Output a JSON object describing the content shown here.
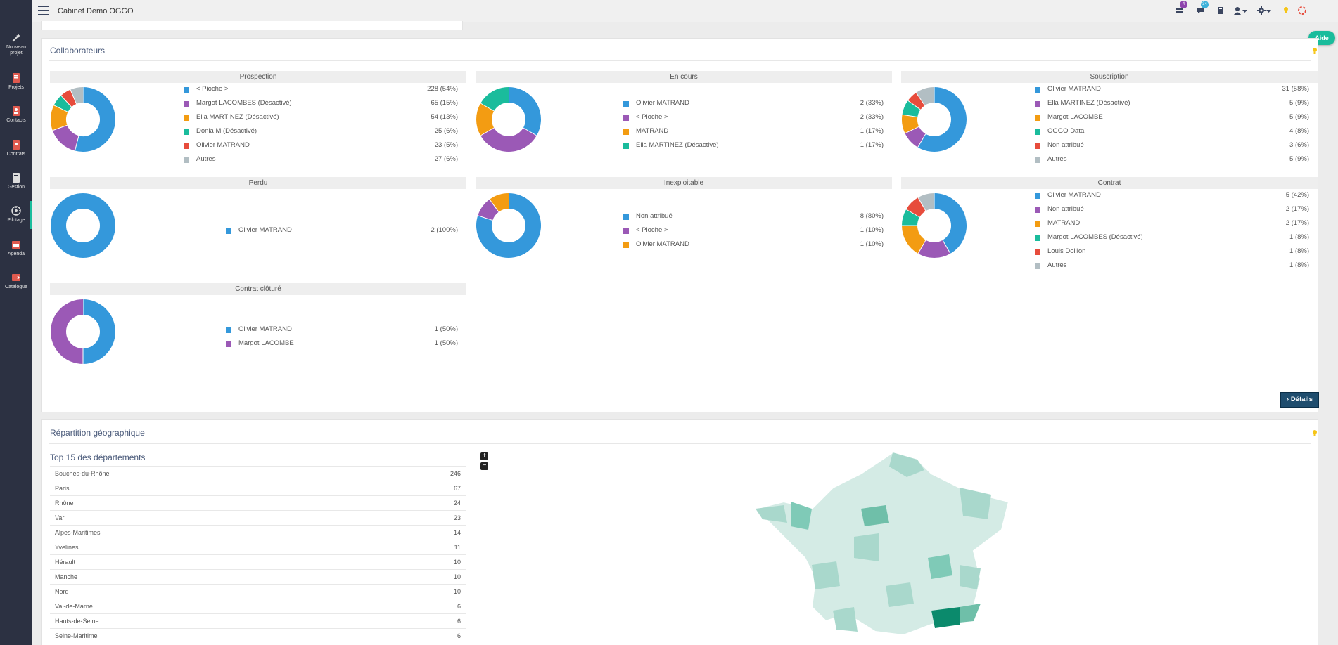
{
  "app": {
    "title": "Cabinet Demo OGGO"
  },
  "sidebar": {
    "items": [
      {
        "label": "Nouveau",
        "label2": "projet",
        "icon": "magic-wand-icon",
        "color": "#dddddd"
      },
      {
        "label": "Projets",
        "label2": "",
        "icon": "projects-icon",
        "color": "#e05a4f"
      },
      {
        "label": "Contacts",
        "label2": "",
        "icon": "contacts-icon",
        "color": "#e05a4f"
      },
      {
        "label": "Contrats",
        "label2": "",
        "icon": "contracts-icon",
        "color": "#e05a4f"
      },
      {
        "label": "Gestion",
        "label2": "",
        "icon": "management-icon",
        "color": "#dddddd"
      },
      {
        "label": "Pilotage",
        "label2": "",
        "icon": "dashboard-gauge-icon",
        "color": "#dddddd"
      },
      {
        "label": "Agenda",
        "label2": "",
        "icon": "calendar-icon",
        "color": "#e05a4f"
      },
      {
        "label": "Catalogue",
        "label2": "",
        "icon": "catalog-icon",
        "color": "#e05a4f"
      }
    ]
  },
  "topbar": {
    "notifications_count": "4",
    "messages_count": "34"
  },
  "aide_label": "Aide",
  "collab": {
    "title": "Collaborateurs",
    "details_label": "› Détails"
  },
  "colors": [
    "#3498db",
    "#9b59b6",
    "#f39c12",
    "#1abc9c",
    "#e74c3c",
    "#b2bec3"
  ],
  "charts": [
    {
      "title": "Prospection",
      "entries": [
        {
          "label": "< Pioche >",
          "value": 228,
          "text": "228 (54%)"
        },
        {
          "label": "Margot LACOMBES (Désactivé)",
          "value": 65,
          "text": "65 (15%)"
        },
        {
          "label": "Ella MARTINEZ (Désactivé)",
          "value": 54,
          "text": "54 (13%)"
        },
        {
          "label": "Donia M (Désactivé)",
          "value": 25,
          "text": "25 (6%)"
        },
        {
          "label": "Olivier MATRAND",
          "value": 23,
          "text": "23 (5%)"
        },
        {
          "label": "Autres",
          "value": 27,
          "text": "27 (6%)"
        }
      ]
    },
    {
      "title": "En cours",
      "entries": [
        {
          "label": "Olivier MATRAND",
          "value": 2,
          "text": "2 (33%)"
        },
        {
          "label": "< Pioche >",
          "value": 2,
          "text": "2 (33%)"
        },
        {
          "label": "MATRAND",
          "value": 1,
          "text": "1 (17%)"
        },
        {
          "label": "Ella MARTINEZ (Désactivé)",
          "value": 1,
          "text": "1 (17%)"
        }
      ]
    },
    {
      "title": "Souscription",
      "entries": [
        {
          "label": "Olivier MATRAND",
          "value": 31,
          "text": "31 (58%)"
        },
        {
          "label": "Ella MARTINEZ (Désactivé)",
          "value": 5,
          "text": "5 (9%)"
        },
        {
          "label": "Margot LACOMBE",
          "value": 5,
          "text": "5 (9%)"
        },
        {
          "label": "OGGO Data",
          "value": 4,
          "text": "4 (8%)"
        },
        {
          "label": "Non attribué",
          "value": 3,
          "text": "3 (6%)"
        },
        {
          "label": "Autres",
          "value": 5,
          "text": "5 (9%)"
        }
      ]
    },
    {
      "title": "Perdu",
      "entries": [
        {
          "label": "Olivier MATRAND",
          "value": 2,
          "text": "2 (100%)"
        }
      ]
    },
    {
      "title": "Inexploitable",
      "entries": [
        {
          "label": "Non attribué",
          "value": 8,
          "text": "8 (80%)"
        },
        {
          "label": "< Pioche >",
          "value": 1,
          "text": "1 (10%)"
        },
        {
          "label": "Olivier MATRAND",
          "value": 1,
          "text": "1 (10%)"
        }
      ]
    },
    {
      "title": "Contrat",
      "entries": [
        {
          "label": "Olivier MATRAND",
          "value": 5,
          "text": "5 (42%)"
        },
        {
          "label": "Non attribué",
          "value": 2,
          "text": "2 (17%)"
        },
        {
          "label": "MATRAND",
          "value": 2,
          "text": "2 (17%)"
        },
        {
          "label": "Margot LACOMBES (Désactivé)",
          "value": 1,
          "text": "1 (8%)"
        },
        {
          "label": "Louis Doillon",
          "value": 1,
          "text": "1 (8%)"
        },
        {
          "label": "Autres",
          "value": 1,
          "text": "1 (8%)"
        }
      ]
    },
    {
      "title": "Contrat clôturé",
      "entries": [
        {
          "label": "Olivier MATRAND",
          "value": 1,
          "text": "1 (50%)"
        },
        {
          "label": "Margot LACOMBE",
          "value": 1,
          "text": "1 (50%)"
        }
      ]
    }
  ],
  "geo": {
    "title": "Répartition géographique",
    "table_title": "Top 15 des départements",
    "zoom_in": "+",
    "zoom_out": "−",
    "departments": [
      {
        "name": "Bouches-du-Rhône",
        "value": "246"
      },
      {
        "name": "Paris",
        "value": "67"
      },
      {
        "name": "Rhône",
        "value": "24"
      },
      {
        "name": "Var",
        "value": "23"
      },
      {
        "name": "Alpes-Maritimes",
        "value": "14"
      },
      {
        "name": "Yvelines",
        "value": "11"
      },
      {
        "name": "Hérault",
        "value": "10"
      },
      {
        "name": "Manche",
        "value": "10"
      },
      {
        "name": "Nord",
        "value": "10"
      },
      {
        "name": "Val-de-Marne",
        "value": "6"
      },
      {
        "name": "Hauts-de-Seine",
        "value": "6"
      },
      {
        "name": "Seine-Maritime",
        "value": "6"
      }
    ]
  }
}
